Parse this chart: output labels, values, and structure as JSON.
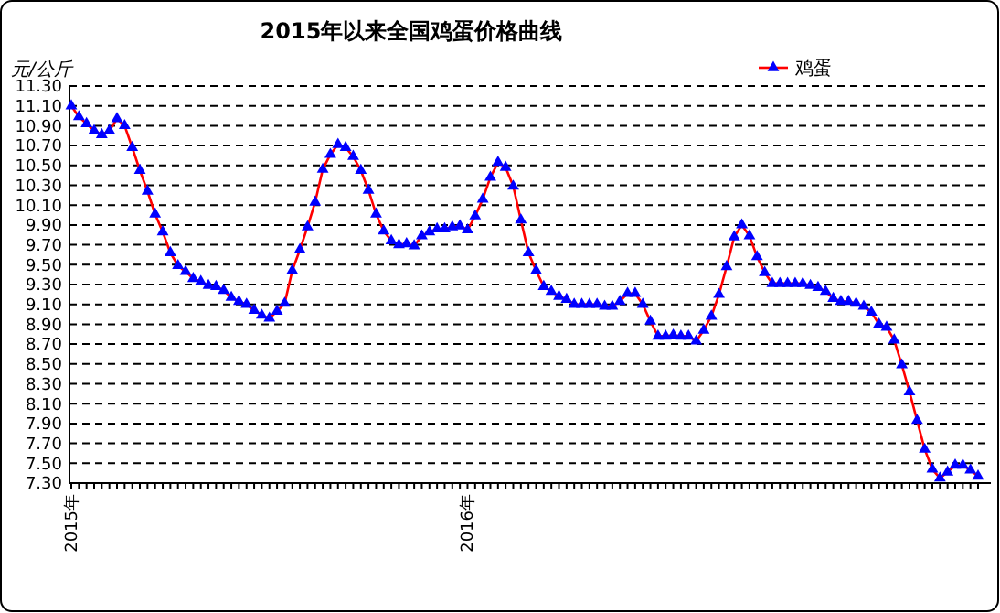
{
  "chart_data": {
    "type": "line",
    "title": "2015年以来全国鸡蛋价格曲线",
    "ylabel": "元/公斤",
    "categories": [
      "2015年",
      null,
      null,
      null,
      null,
      null,
      null,
      null,
      null,
      null,
      null,
      null,
      null,
      null,
      null,
      null,
      null,
      null,
      null,
      null,
      null,
      null,
      null,
      null,
      null,
      null,
      null,
      null,
      null,
      null,
      null,
      null,
      null,
      null,
      null,
      null,
      null,
      null,
      null,
      null,
      null,
      null,
      null,
      null,
      null,
      null,
      null,
      null,
      null,
      null,
      null,
      null,
      "2016年",
      null,
      null,
      null,
      null,
      null,
      null,
      null,
      null,
      null,
      null,
      null,
      null,
      null,
      null,
      null,
      null,
      null,
      null,
      null,
      null,
      null,
      null,
      null,
      null,
      null,
      null,
      null,
      null,
      null,
      null,
      null,
      null,
      null,
      null,
      null,
      null,
      null,
      null,
      null,
      null,
      null,
      null,
      null,
      null,
      null,
      null,
      null,
      null,
      null,
      null,
      null,
      null,
      null,
      null,
      null,
      null,
      null,
      null,
      null,
      null,
      null,
      null,
      null,
      null,
      null,
      null,
      null
    ],
    "series": [
      {
        "name": "鸡蛋",
        "color": "#ff0000",
        "values": [
          11.1,
          10.99,
          10.92,
          10.85,
          10.81,
          10.85,
          10.97,
          10.9,
          10.68,
          10.45,
          10.24,
          10.01,
          9.83,
          9.62,
          9.49,
          9.43,
          9.36,
          9.33,
          9.29,
          9.28,
          9.24,
          9.17,
          9.13,
          9.1,
          9.04,
          8.99,
          8.96,
          9.03,
          9.11,
          9.44,
          9.65,
          9.88,
          10.13,
          10.46,
          10.61,
          10.71,
          10.68,
          10.59,
          10.45,
          10.25,
          10.01,
          9.84,
          9.74,
          9.7,
          9.71,
          9.69,
          9.79,
          9.83,
          9.86,
          9.86,
          9.88,
          9.89,
          9.85,
          9.99,
          10.16,
          10.38,
          10.53,
          10.48,
          10.29,
          9.95,
          9.62,
          9.44,
          9.28,
          9.23,
          9.18,
          9.15,
          9.1,
          9.1,
          9.1,
          9.1,
          9.08,
          9.08,
          9.13,
          9.21,
          9.21,
          9.1,
          8.93,
          8.78,
          8.78,
          8.79,
          8.78,
          8.78,
          8.73,
          8.84,
          8.98,
          9.2,
          9.48,
          9.78,
          9.9,
          9.79,
          9.58,
          9.42,
          9.31,
          9.31,
          9.31,
          9.31,
          9.31,
          9.29,
          9.27,
          9.23,
          9.16,
          9.13,
          9.13,
          9.11,
          9.08,
          9.02,
          8.9,
          8.87,
          8.74,
          8.49,
          8.22,
          7.93,
          7.64,
          7.44,
          7.35,
          7.41,
          7.48,
          7.48,
          7.43,
          7.37
        ]
      }
    ],
    "ylim": [
      7.3,
      11.3
    ],
    "yticks": [
      {
        "value": 7.3,
        "label": "7.30"
      },
      {
        "value": 7.5,
        "label": "7.50"
      },
      {
        "value": 7.7,
        "label": "7.70"
      },
      {
        "value": 7.9,
        "label": "7.90"
      },
      {
        "value": 8.1,
        "label": "8.10"
      },
      {
        "value": 8.3,
        "label": "8.30"
      },
      {
        "value": 8.5,
        "label": "8.50"
      },
      {
        "value": 8.7,
        "label": "8.70"
      },
      {
        "value": 8.9,
        "label": "8.90"
      },
      {
        "value": 9.1,
        "label": "9.10"
      },
      {
        "value": 9.3,
        "label": "9.30"
      },
      {
        "value": 9.5,
        "label": "9.50"
      },
      {
        "value": 9.7,
        "label": "9.70"
      },
      {
        "value": 9.9,
        "label": "9.90"
      },
      {
        "value": 10.1,
        "label": "10.10"
      },
      {
        "value": 10.3,
        "label": "10.30"
      },
      {
        "value": 10.5,
        "label": "10.50"
      },
      {
        "value": 10.7,
        "label": "10.70"
      },
      {
        "value": 10.9,
        "label": "10.90"
      },
      {
        "value": 11.1,
        "label": "11.10"
      },
      {
        "value": 11.3,
        "label": "11.30"
      }
    ],
    "grid": "y",
    "legend": "top right",
    "marker": "triangle",
    "line_style": "solid"
  }
}
